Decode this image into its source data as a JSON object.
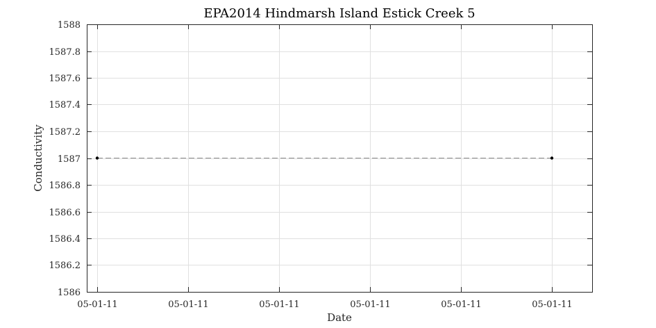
{
  "chart_data": {
    "type": "line",
    "title": "EPA2014 Hindmarsh Island Estick Creek 5",
    "xlabel": "Date",
    "ylabel": "Conductivity",
    "x_tick_labels": [
      "05-01-11",
      "05-01-11",
      "05-01-11",
      "05-01-11",
      "05-01-11",
      "05-01-11"
    ],
    "y_ticks": [
      1586,
      1586.2,
      1586.4,
      1586.6,
      1586.8,
      1587,
      1587.2,
      1587.4,
      1587.6,
      1587.8,
      1588
    ],
    "y_tick_labels": [
      "1586",
      "1586.2",
      "1586.4",
      "1586.6",
      "1586.8",
      "1587",
      "1587.2",
      "1587.4",
      "1587.6",
      "1587.8",
      "1588"
    ],
    "ylim": [
      1586,
      1588
    ],
    "grid": true,
    "legend": "none",
    "series": [
      {
        "points": [
          {
            "x": "05-01-11",
            "y": 1587
          },
          {
            "x": "05-01-11",
            "y": 1587
          }
        ],
        "line_style": "dashed",
        "line_color": "#8c8c8c",
        "marker_color": "#000000"
      }
    ]
  }
}
